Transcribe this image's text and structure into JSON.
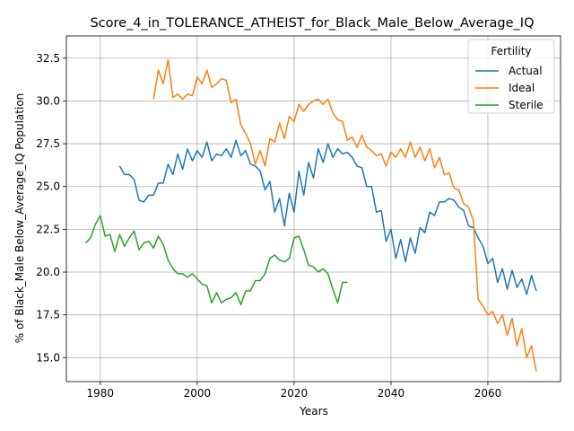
{
  "chart_data": {
    "type": "line",
    "title": "Score_4_in_TOLERANCE_ATHEIST_for_Black_Male_Below_Average_IQ",
    "xlabel": "Years",
    "ylabel": "% of Black_Male Below_Average_IQ Population",
    "xlim": [
      1973,
      2075
    ],
    "ylim": [
      13.6,
      33.8
    ],
    "xticks": [
      1980,
      2000,
      2020,
      2040,
      2060
    ],
    "yticks": [
      15.0,
      17.5,
      20.0,
      22.5,
      25.0,
      27.5,
      30.0,
      32.5
    ],
    "xtick_labels": [
      "1980",
      "2000",
      "2020",
      "2040",
      "2060"
    ],
    "ytick_labels": [
      "15.0",
      "17.5",
      "20.0",
      "22.5",
      "25.0",
      "27.5",
      "30.0",
      "32.5"
    ],
    "grid": true,
    "legend": {
      "title": "Fertility",
      "placement": "top-right"
    },
    "series": [
      {
        "name": "Actual",
        "color": "#1f77b4",
        "x": [
          1984,
          1985,
          1986,
          1987,
          1988,
          1989,
          1990,
          1991,
          1992,
          1993,
          1994,
          1995,
          1996,
          1997,
          1998,
          1999,
          2000,
          2001,
          2002,
          2003,
          2004,
          2005,
          2006,
          2007,
          2008,
          2009,
          2010,
          2011,
          2012,
          2013,
          2014,
          2015,
          2016,
          2017,
          2018,
          2019,
          2020,
          2021,
          2022,
          2023,
          2024,
          2025,
          2026,
          2027,
          2028,
          2029,
          2030,
          2031,
          2032,
          2033,
          2034,
          2035,
          2036,
          2037,
          2038,
          2039,
          2040,
          2041,
          2042,
          2043,
          2044,
          2045,
          2046,
          2047,
          2048,
          2049,
          2050,
          2051,
          2052,
          2053,
          2054,
          2055,
          2056,
          2057,
          2058,
          2059,
          2060,
          2061,
          2062,
          2063,
          2064,
          2065,
          2066,
          2067,
          2068,
          2069,
          2070
        ],
        "values": [
          26.2,
          25.7,
          25.7,
          25.4,
          24.2,
          24.1,
          24.5,
          24.5,
          25.2,
          25.2,
          26.3,
          25.7,
          26.9,
          26.0,
          27.2,
          26.5,
          27.1,
          26.7,
          27.6,
          26.5,
          26.9,
          26.8,
          27.2,
          26.7,
          27.7,
          26.8,
          27.1,
          26.3,
          26.2,
          25.9,
          24.8,
          25.3,
          23.5,
          24.3,
          22.7,
          24.6,
          23.5,
          25.9,
          24.5,
          26.4,
          25.5,
          27.2,
          26.4,
          27.5,
          26.7,
          27.2,
          26.9,
          27.0,
          26.7,
          26.2,
          26.1,
          25.0,
          25.0,
          23.5,
          23.6,
          21.8,
          22.5,
          20.8,
          21.9,
          20.6,
          22.0,
          21.1,
          22.6,
          22.3,
          23.5,
          23.3,
          24.1,
          24.1,
          24.3,
          24.2,
          23.8,
          23.6,
          22.7,
          22.6,
          22.0,
          21.5,
          20.5,
          20.8,
          19.4,
          20.2,
          19.0,
          20.1,
          19.1,
          19.6,
          18.7,
          19.8,
          18.9
        ]
      },
      {
        "name": "Ideal",
        "color": "#ff7f0e",
        "x": [
          1991,
          1992,
          1993,
          1994,
          1995,
          1996,
          1997,
          1998,
          1999,
          2000,
          2001,
          2002,
          2003,
          2004,
          2005,
          2006,
          2007,
          2008,
          2009,
          2010,
          2011,
          2012,
          2013,
          2014,
          2015,
          2016,
          2017,
          2018,
          2019,
          2020,
          2021,
          2022,
          2023,
          2024,
          2025,
          2026,
          2027,
          2028,
          2029,
          2030,
          2031,
          2032,
          2033,
          2034,
          2035,
          2036,
          2037,
          2038,
          2039,
          2040,
          2041,
          2042,
          2043,
          2044,
          2045,
          2046,
          2047,
          2048,
          2049,
          2050,
          2051,
          2052,
          2053,
          2054,
          2055,
          2056,
          2057,
          2058,
          2059,
          2060,
          2061,
          2062,
          2063,
          2064,
          2065,
          2066,
          2067,
          2068,
          2069,
          2070
        ],
        "values": [
          30.1,
          31.8,
          31.0,
          32.4,
          30.2,
          30.4,
          30.1,
          30.4,
          30.3,
          31.4,
          31.0,
          31.8,
          30.8,
          31.0,
          31.3,
          31.2,
          29.9,
          30.1,
          28.6,
          28.1,
          27.5,
          26.3,
          27.1,
          26.2,
          27.8,
          27.6,
          28.7,
          27.8,
          29.1,
          28.8,
          29.8,
          29.4,
          29.8,
          30.0,
          30.1,
          29.8,
          30.1,
          29.3,
          28.9,
          28.8,
          27.7,
          27.9,
          27.3,
          28.0,
          27.3,
          27.1,
          26.8,
          26.9,
          26.2,
          27.0,
          26.7,
          27.2,
          26.7,
          27.6,
          26.7,
          27.3,
          26.5,
          27.2,
          26.1,
          26.7,
          25.7,
          25.8,
          24.9,
          24.8,
          24.0,
          23.8,
          23.0,
          18.4,
          18.0,
          17.5,
          17.7,
          17.0,
          17.5,
          16.3,
          17.3,
          15.7,
          16.7,
          15.0,
          15.7,
          14.2
        ]
      },
      {
        "name": "Sterile",
        "color": "#2ca02c",
        "x": [
          1977,
          1978,
          1979,
          1980,
          1981,
          1982,
          1983,
          1984,
          1985,
          1986,
          1987,
          1988,
          1989,
          1990,
          1991,
          1992,
          1993,
          1994,
          1995,
          1996,
          1997,
          1998,
          1999,
          2000,
          2001,
          2002,
          2003,
          2004,
          2005,
          2006,
          2007,
          2008,
          2009,
          2010,
          2011,
          2012,
          2013,
          2014,
          2015,
          2016,
          2017,
          2018,
          2019,
          2020,
          2021,
          2022,
          2023,
          2024,
          2025,
          2026,
          2027,
          2028,
          2029,
          2030,
          2031
        ],
        "values": [
          21.7,
          22.0,
          22.8,
          23.3,
          22.1,
          22.2,
          21.2,
          22.2,
          21.5,
          22.0,
          22.4,
          21.3,
          21.7,
          21.8,
          21.4,
          22.1,
          21.6,
          20.7,
          20.2,
          19.9,
          19.9,
          19.7,
          19.9,
          19.6,
          19.3,
          19.2,
          18.2,
          18.8,
          18.2,
          18.4,
          18.5,
          18.8,
          18.1,
          18.9,
          18.9,
          19.5,
          19.5,
          19.9,
          20.8,
          21.0,
          20.7,
          20.6,
          20.8,
          22.0,
          22.1,
          21.3,
          20.4,
          20.3,
          20.0,
          20.2,
          19.9,
          19.0,
          18.2,
          19.4,
          19.4
        ]
      }
    ]
  }
}
